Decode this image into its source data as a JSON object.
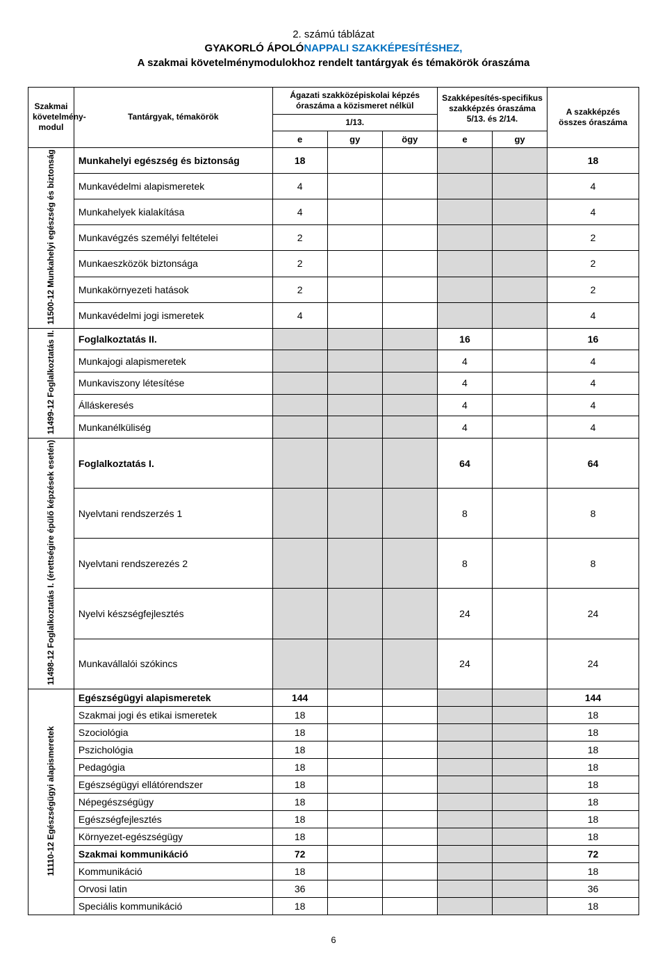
{
  "title": {
    "line1": "2. számú táblázat",
    "line2a": "GYAKORLÓ ÁPOLÓ",
    "line2b": "NAPPALI SZAKKÉPESÍTÉSHEZ,",
    "line3": "A szakmai követelménymodulokhoz rendelt tantárgyak és témakörök óraszáma"
  },
  "headers": {
    "module": "Szakmai követelmény-modul",
    "topics": "Tantárgyak, témakörök",
    "agazati": "Ágazati szakközépiskolai képzés óraszáma a közismeret nélkül",
    "agazati_sub": "1/13.",
    "spec": "Szakképesítés-specifikus szakképzés óraszáma 5/13. és 2/14.",
    "total": "A szakképzés összes óraszáma",
    "e": "e",
    "gy": "gy",
    "ogy": "ögy"
  },
  "modules": [
    {
      "label": "11500-12\nMunkahelyi egészség és biztonság",
      "rows": [
        {
          "topic": "Munkahelyi egészség és biztonság",
          "bold": true,
          "e1": "18",
          "total": "18",
          "grey_spec": true
        },
        {
          "topic": "Munkavédelmi alapismeretek",
          "e1": "4",
          "total": "4",
          "grey_spec": true
        },
        {
          "topic": "Munkahelyek kialakítása",
          "e1": "4",
          "total": "4",
          "grey_spec": true
        },
        {
          "topic": "Munkavégzés személyi feltételei",
          "e1": "2",
          "total": "2",
          "grey_spec": true
        },
        {
          "topic": "Munkaeszközök biztonsága",
          "e1": "2",
          "total": "2",
          "grey_spec": true
        },
        {
          "topic": "Munkakörnyezeti hatások",
          "e1": "2",
          "total": "2",
          "grey_spec": true
        },
        {
          "topic": "Munkavédelmi jogi ismeretek",
          "e1": "4",
          "total": "4",
          "grey_spec": true
        }
      ]
    },
    {
      "label": "11499-12\nFoglalkoztatás II.",
      "rows": [
        {
          "topic": "Foglalkoztatás II.",
          "bold": true,
          "e2": "16",
          "total": "16",
          "grey_ag": true
        },
        {
          "topic": "Munkajogi alapismeretek",
          "e2": "4",
          "total": "4",
          "grey_ag": true
        },
        {
          "topic": "Munkaviszony létesítése",
          "e2": "4",
          "total": "4",
          "grey_ag": true
        },
        {
          "topic": "Álláskeresés",
          "e2": "4",
          "total": "4",
          "grey_ag": true
        },
        {
          "topic": "Munkanélküliség",
          "e2": "4",
          "total": "4",
          "grey_ag": true
        }
      ]
    },
    {
      "label": "11498-12\nFoglalkoztatás I.\n(érettségire épülő képzések esetén)",
      "rows": [
        {
          "topic": "Foglalkoztatás I.",
          "bold": true,
          "e2": "64",
          "total": "64",
          "grey_ag": true
        },
        {
          "topic": "Nyelvtani rendszerzés 1",
          "e2": "8",
          "total": "8",
          "grey_ag": true
        },
        {
          "topic": "Nyelvtani rendszerezés 2",
          "e2": "8",
          "total": "8",
          "grey_ag": true
        },
        {
          "topic": "Nyelvi készségfejlesztés",
          "e2": "24",
          "total": "24",
          "grey_ag": true
        },
        {
          "topic": "Munkavállalói szókincs",
          "e2": "24",
          "total": "24",
          "grey_ag": true
        }
      ]
    },
    {
      "label": "11110-12 Egészségügyi alapismeretek",
      "rows": [
        {
          "topic": "Egészségügyi alapismeretek",
          "bold": true,
          "e1": "144",
          "total": "144",
          "grey_spec": true
        },
        {
          "topic": "Szakmai jogi és etikai ismeretek",
          "e1": "18",
          "total": "18",
          "grey_spec": true
        },
        {
          "topic": "Szociológia",
          "e1": "18",
          "total": "18",
          "grey_spec": true
        },
        {
          "topic": "Pszichológia",
          "e1": "18",
          "total": "18",
          "grey_spec": true
        },
        {
          "topic": "Pedagógia",
          "e1": "18",
          "total": "18",
          "grey_spec": true
        },
        {
          "topic": "Egészségügyi ellátórendszer",
          "e1": "18",
          "total": "18",
          "grey_spec": true
        },
        {
          "topic": "Népegészségügy",
          "e1": "18",
          "total": "18",
          "grey_spec": true
        },
        {
          "topic": "Egészségfejlesztés",
          "e1": "18",
          "total": "18",
          "grey_spec": true
        },
        {
          "topic": "Környezet-egészségügy",
          "e1": "18",
          "total": "18",
          "grey_spec": true
        },
        {
          "topic": "Szakmai kommunikáció",
          "bold": true,
          "e1": "72",
          "total": "72",
          "grey_spec": true
        },
        {
          "topic": "Kommunikáció",
          "e1": "18",
          "total": "18",
          "grey_spec": true
        },
        {
          "topic": "Orvosi latin",
          "e1": "36",
          "total": "36",
          "grey_spec": true
        },
        {
          "topic": "Speciális kommunikáció",
          "e1": "18",
          "total": "18",
          "grey_spec": true
        }
      ]
    }
  ],
  "page_number": "6",
  "colors": {
    "blue": "#0070c0",
    "grey": "#d9d9d9",
    "border": "#000000",
    "bg": "#ffffff",
    "text": "#000000"
  }
}
